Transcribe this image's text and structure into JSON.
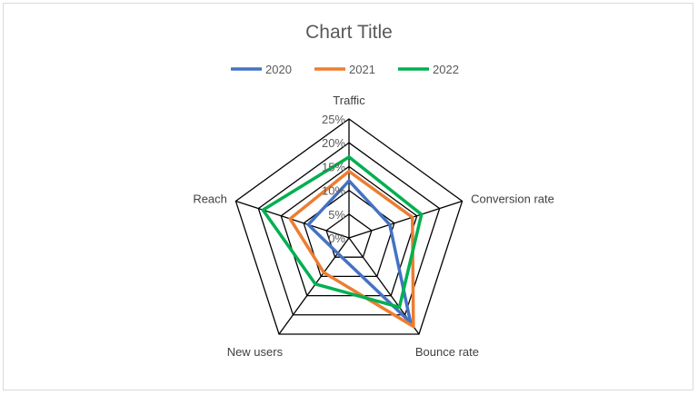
{
  "chart_data": {
    "type": "radar",
    "title": "Chart Title",
    "categories": [
      "Traffic",
      "Conversion rate",
      "Bounce rate",
      "New users",
      "Reach"
    ],
    "ticks": [
      "0%",
      "5%",
      "10%",
      "15%",
      "20%",
      "25%"
    ],
    "rlim": [
      0,
      25
    ],
    "legend_position": "top",
    "grid": true,
    "series": [
      {
        "name": "2020",
        "color": "#4472c4",
        "values": [
          12,
          9,
          22,
          4,
          9
        ]
      },
      {
        "name": "2021",
        "color": "#ed7d31",
        "values": [
          14,
          14,
          23,
          9,
          13
        ]
      },
      {
        "name": "2022",
        "color": "#00b050",
        "values": [
          17,
          16,
          18,
          12,
          19
        ]
      }
    ]
  }
}
